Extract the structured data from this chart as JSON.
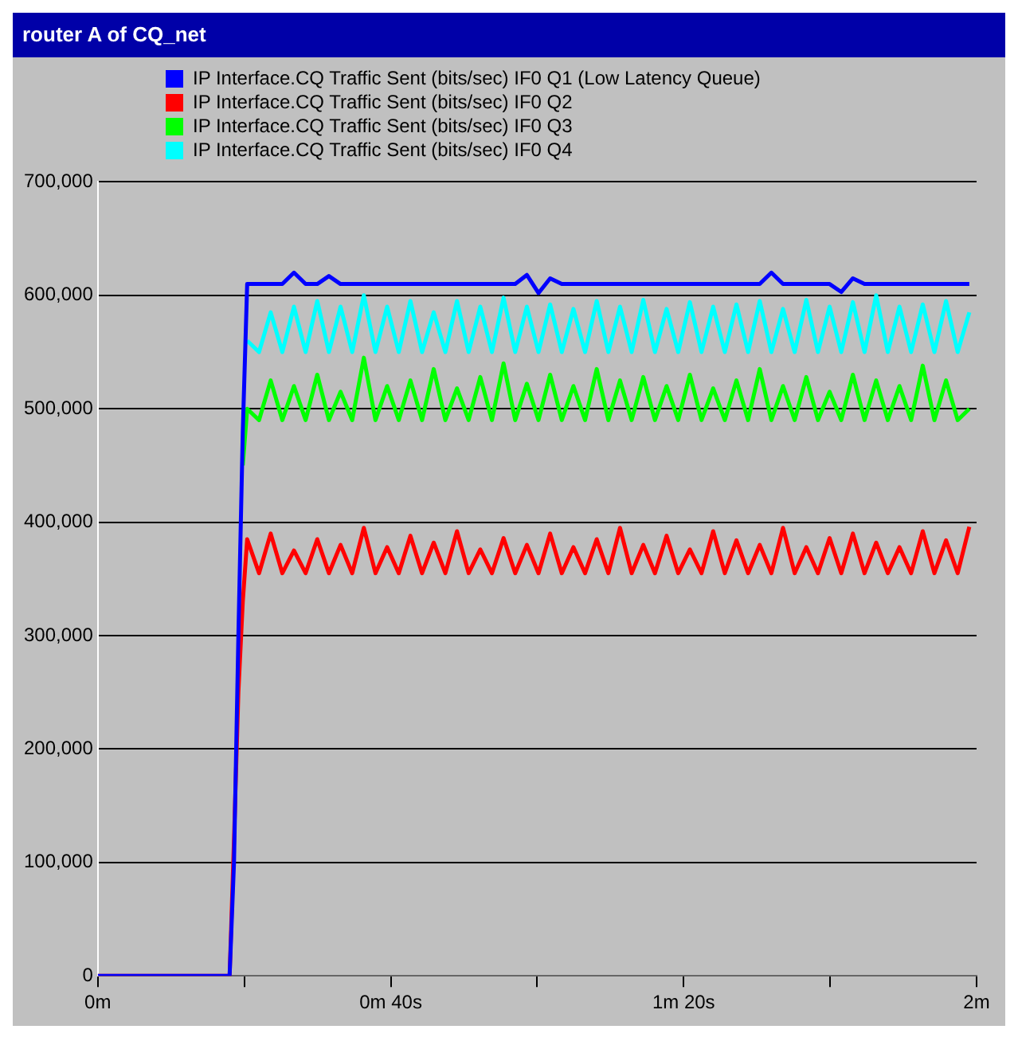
{
  "chart_data": {
    "type": "line",
    "title": "router A of CQ_net",
    "x": [
      0,
      0.3,
      0.31,
      0.32,
      0.33,
      0.34,
      0.367,
      0.3935,
      0.42,
      0.4465,
      0.473,
      0.4995,
      0.526,
      0.5525,
      0.579,
      0.6055,
      0.632,
      0.6585,
      0.685,
      0.7115,
      0.738,
      0.7645,
      0.791,
      0.8175,
      0.844,
      0.8705,
      0.897,
      0.9235,
      0.95,
      0.9765,
      1.003,
      1.0295,
      1.056,
      1.0825,
      1.109,
      1.1355,
      1.162,
      1.1885,
      1.215,
      1.2415,
      1.268,
      1.2945,
      1.321,
      1.3475,
      1.374,
      1.4005,
      1.427,
      1.4535,
      1.48,
      1.5065,
      1.533,
      1.5595,
      1.586,
      1.6125,
      1.639,
      1.6655,
      1.692,
      1.7185,
      1.745,
      1.7715,
      1.798,
      1.8245,
      1.851,
      1.8775,
      1.904,
      1.9305,
      1.957,
      1.9835
    ],
    "xlim": [
      0,
      2
    ],
    "xticks": [
      {
        "value": 0,
        "label": "0m"
      },
      {
        "value": 0.3333,
        "label": null
      },
      {
        "value": 0.6667,
        "label": "0m 40s"
      },
      {
        "value": 1,
        "label": null
      },
      {
        "value": 1.3333,
        "label": "1m 20s"
      },
      {
        "value": 1.6667,
        "label": null
      },
      {
        "value": 2,
        "label": "2m"
      }
    ],
    "ylim": [
      0,
      700000
    ],
    "yticks": [
      {
        "value": 0,
        "label": "0"
      },
      {
        "value": 100000,
        "label": "100,000"
      },
      {
        "value": 200000,
        "label": "200,000"
      },
      {
        "value": 300000,
        "label": "300,000"
      },
      {
        "value": 400000,
        "label": "400,000"
      },
      {
        "value": 500000,
        "label": "500,000"
      },
      {
        "value": 600000,
        "label": "600,000"
      },
      {
        "value": 700000,
        "label": "700,000"
      }
    ],
    "grid": "y",
    "legend": "top",
    "marker": "none",
    "line_style": "solid",
    "series": [
      {
        "name": "IP Interface.CQ Traffic Sent (bits/sec) IF0 Q1 (Low Latency Queue)",
        "color": "#0000ff",
        "values": [
          0,
          0,
          100000,
          300000,
          480000,
          610000,
          610000,
          610000,
          610000,
          620000,
          610000,
          610000,
          617000,
          610000,
          610000,
          610000,
          610000,
          610000,
          610000,
          610000,
          610000,
          610000,
          610000,
          610000,
          610000,
          610000,
          610000,
          610000,
          610000,
          618000,
          602000,
          615000,
          610000,
          610000,
          610000,
          610000,
          610000,
          610000,
          610000,
          610000,
          610000,
          610000,
          610000,
          610000,
          610000,
          610000,
          610000,
          610000,
          610000,
          610000,
          620000,
          610000,
          610000,
          610000,
          610000,
          610000,
          603000,
          615000,
          610000,
          610000,
          610000,
          610000,
          610000,
          610000,
          610000,
          610000,
          610000,
          610000
        ]
      },
      {
        "name": "IP Interface.CQ Traffic Sent (bits/sec) IF0 Q2",
        "color": "#ff0000",
        "values": [
          0,
          0,
          120000,
          250000,
          330000,
          385000,
          355000,
          390000,
          355000,
          375000,
          355000,
          385000,
          355000,
          380000,
          355000,
          395000,
          355000,
          378000,
          355000,
          388000,
          355000,
          382000,
          355000,
          392000,
          355000,
          376000,
          355000,
          386000,
          355000,
          380000,
          355000,
          390000,
          355000,
          378000,
          355000,
          385000,
          355000,
          395000,
          355000,
          380000,
          355000,
          388000,
          355000,
          376000,
          355000,
          392000,
          355000,
          384000,
          355000,
          380000,
          355000,
          395000,
          355000,
          378000,
          355000,
          386000,
          355000,
          390000,
          355000,
          382000,
          355000,
          378000,
          355000,
          392000,
          355000,
          384000,
          355000,
          396000
        ]
      },
      {
        "name": "IP Interface.CQ Traffic Sent (bits/sec) IF0 Q3",
        "color": "#00ff00",
        "values": [
          null,
          null,
          null,
          null,
          450000,
          500000,
          490000,
          525000,
          490000,
          520000,
          490000,
          530000,
          490000,
          515000,
          490000,
          545000,
          490000,
          520000,
          490000,
          525000,
          490000,
          535000,
          490000,
          518000,
          490000,
          528000,
          490000,
          540000,
          490000,
          522000,
          490000,
          530000,
          490000,
          520000,
          490000,
          535000,
          490000,
          525000,
          490000,
          528000,
          490000,
          520000,
          490000,
          530000,
          490000,
          518000,
          490000,
          525000,
          490000,
          535000,
          490000,
          520000,
          490000,
          528000,
          490000,
          515000,
          490000,
          530000,
          490000,
          525000,
          490000,
          520000,
          490000,
          538000,
          490000,
          525000,
          490000,
          500000
        ]
      },
      {
        "name": "IP Interface.CQ Traffic Sent (bits/sec) IF0 Q4",
        "color": "#00ffff",
        "values": [
          null,
          null,
          null,
          null,
          null,
          560000,
          550000,
          585000,
          550000,
          590000,
          550000,
          595000,
          550000,
          590000,
          550000,
          600000,
          550000,
          590000,
          550000,
          595000,
          550000,
          585000,
          550000,
          595000,
          550000,
          590000,
          550000,
          598000,
          550000,
          590000,
          550000,
          592000,
          550000,
          588000,
          550000,
          595000,
          550000,
          590000,
          550000,
          596000,
          550000,
          588000,
          550000,
          594000,
          550000,
          590000,
          550000,
          592000,
          550000,
          595000,
          550000,
          588000,
          550000,
          596000,
          550000,
          590000,
          550000,
          594000,
          550000,
          600000,
          550000,
          590000,
          550000,
          592000,
          550000,
          595000,
          550000,
          585000
        ]
      }
    ]
  }
}
